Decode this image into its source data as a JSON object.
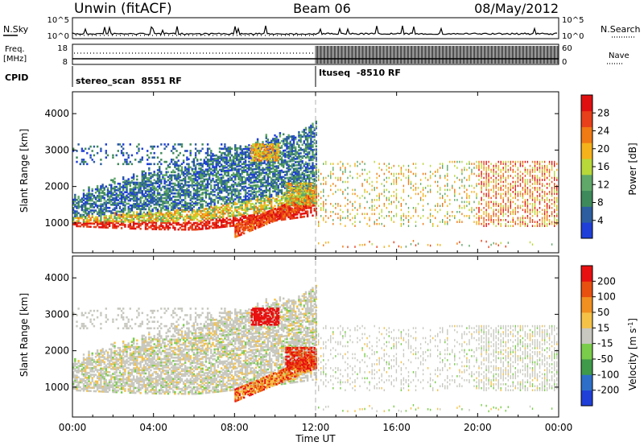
{
  "header": {
    "station": "Unwin (fitACF)",
    "beam": "Beam 06",
    "date": "08/May/2012"
  },
  "top_panel": {
    "left_label": "N.Sky",
    "right_label": "N.Search",
    "ticks_left": [
      "10^5",
      "10^0"
    ],
    "ticks_right": [
      "10^5",
      "10^0"
    ]
  },
  "freq_panel": {
    "left_label_1": "Freq.",
    "left_label_2": "[MHz]",
    "ticks_left": [
      "18",
      "8"
    ],
    "ticks_right": [
      "60",
      "0"
    ],
    "right_label": "Nave"
  },
  "cpid": {
    "label": "CPID",
    "modes": [
      {
        "name": "stereo_scan",
        "id": "8551 RF",
        "start_hour": 0
      },
      {
        "name": "Ituseq",
        "id": "-8510 RF",
        "start_hour": 12
      }
    ]
  },
  "colors": {
    "power": [
      "#1f3fd8",
      "#2d5fa0",
      "#3f8a5a",
      "#5fa86a",
      "#b8d83a",
      "#f5b21a",
      "#f07a14",
      "#e8401a",
      "#e01010"
    ],
    "velocity": [
      "#1f3fd8",
      "#2d6fc8",
      "#3f9a4a",
      "#7acd4a",
      "#c8c8c0",
      "#f5c248",
      "#f09020",
      "#e85010",
      "#e81010"
    ]
  },
  "chart_data": [
    {
      "type": "heatmap",
      "title": "Power",
      "ylabel": "Slant Range [km]",
      "ylim": [
        180,
        4600
      ],
      "yticks": [
        "1000",
        "2000",
        "3000",
        "4000"
      ],
      "xlim": [
        0,
        24
      ],
      "xticks": [
        "00:00",
        "04:00",
        "08:00",
        "12:00",
        "16:00",
        "20:00",
        "00:00"
      ],
      "colorbar": {
        "label": "Power [dB]",
        "ticks": [
          "28",
          "24",
          "20",
          "16",
          "12",
          "8",
          "4"
        ],
        "range": [
          0,
          30
        ]
      }
    },
    {
      "type": "heatmap",
      "title": "Velocity",
      "ylabel": "Slant Range [km]",
      "ylim": [
        180,
        4600
      ],
      "yticks": [
        "1000",
        "2000",
        "3000",
        "4000"
      ],
      "xlim": [
        0,
        24
      ],
      "xticks": [
        "00:00",
        "04:00",
        "08:00",
        "12:00",
        "16:00",
        "20:00",
        "00:00"
      ],
      "xlabel": "Time UT",
      "colorbar": {
        "label": "Velocity [m s",
        "label_sup": "-1",
        "label_end": "]",
        "ticks": [
          "200",
          "100",
          "50",
          "15",
          "-15",
          "-50",
          "-100",
          "-200"
        ]
      }
    }
  ]
}
